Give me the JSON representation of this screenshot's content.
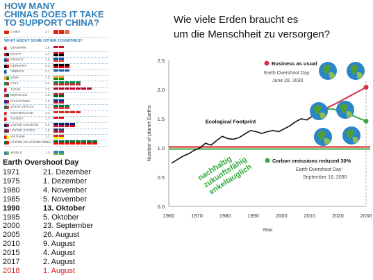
{
  "infographic": {
    "title_line1": "HOW MANY",
    "title_line2": "CHINAS DOES IT TAKE",
    "title_line3": "TO SUPPORT CHINA?",
    "china": {
      "name": "CHINA",
      "value": "2.7"
    },
    "subtitle": "WHAT ABOUT SOME OTHER COUNTRIES?",
    "rows": [
      {
        "name": "DENMARK",
        "value": "1.8",
        "chips": 2,
        "colors": [
          "#c8102e",
          "#ffffff"
        ]
      },
      {
        "name": "EGYPT",
        "value": "1.7",
        "chips": 2,
        "colors": [
          "#ce1126",
          "#000000"
        ]
      },
      {
        "name": "FRANCE",
        "value": "1.6",
        "chips": 2,
        "colors": [
          "#0055a4",
          "#ef4135"
        ]
      },
      {
        "name": "GERMANY",
        "value": "2.5",
        "chips": 3,
        "colors": [
          "#000000",
          "#dd0000",
          "#ffce00"
        ]
      },
      {
        "name": "GREECE",
        "value": "3.1",
        "chips": 3,
        "colors": [
          "#0d5eaf",
          "#ffffff"
        ]
      },
      {
        "name": "INDIA",
        "value": "1.9",
        "chips": 2,
        "colors": [
          "#ff9933",
          "#138808"
        ]
      },
      {
        "name": "ITALY",
        "value": "4.4",
        "chips": 5,
        "colors": [
          "#009246",
          "#ce2b37"
        ]
      },
      {
        "name": "JAPAN",
        "value": "7.0",
        "chips": 7,
        "colors": [
          "#bc002d",
          "#ffffff"
        ]
      },
      {
        "name": "MOROCCO",
        "value": "1.8",
        "chips": 2,
        "colors": [
          "#c1272d",
          "#006233"
        ]
      },
      {
        "name": "PHILIPPINES",
        "value": "1.5",
        "chips": 2,
        "colors": [
          "#0038a8",
          "#ce1126"
        ]
      },
      {
        "name": "SOUTH AFRICA",
        "value": "2.2",
        "chips": 3,
        "colors": [
          "#007749",
          "#de3831"
        ]
      },
      {
        "name": "SWITZERLAND",
        "value": "4.3",
        "chips": 5,
        "colors": [
          "#d52b1e",
          "#ffffff"
        ]
      },
      {
        "name": "TURKEY",
        "value": "1.7",
        "chips": 2,
        "colors": [
          "#e30a17",
          "#ffffff"
        ]
      },
      {
        "name": "UNITED KINGDOM",
        "value": "3.9",
        "chips": 4,
        "colors": [
          "#012169",
          "#c8102e"
        ]
      },
      {
        "name": "UNITED STATES",
        "value": "1.9",
        "chips": 2,
        "colors": [
          "#3c3b6e",
          "#b22234"
        ]
      },
      {
        "name": "VIETNAM",
        "value": "1.7",
        "chips": 2,
        "colors": [
          "#da251d",
          "#ffff00"
        ]
      },
      {
        "name": "UNITED ARAB EMIRATES",
        "value": "12.3",
        "chips": 8,
        "colors": [
          "#00732f",
          "#ff0000"
        ]
      },
      {
        "name": "WORLD",
        "value": "1.5",
        "chips": 2,
        "colors": [
          "#2f7fb8",
          "#6ab04c"
        ]
      }
    ]
  },
  "overshoot": {
    "title": "Earth Overshoot Day",
    "rows": [
      {
        "year": "1971",
        "date": "21. Dezember",
        "style": ""
      },
      {
        "year": "1975",
        "date": "1. Dezember",
        "style": ""
      },
      {
        "year": "1980",
        "date": "4. November",
        "style": ""
      },
      {
        "year": "1985",
        "date": "5. November",
        "style": ""
      },
      {
        "year": "1990",
        "date": "13. Oktober",
        "style": "bold"
      },
      {
        "year": "1995",
        "date": "5. Oktober",
        "style": ""
      },
      {
        "year": "2000",
        "date": "23. September",
        "style": ""
      },
      {
        "year": "2005",
        "date": "26. August",
        "style": ""
      },
      {
        "year": "2010",
        "date": "9. August",
        "style": ""
      },
      {
        "year": "2015",
        "date": "4. August",
        "style": ""
      },
      {
        "year": "2017",
        "date": "2. August",
        "style": ""
      },
      {
        "year": "2018",
        "date": "1. August",
        "style": "red"
      }
    ]
  },
  "heading": {
    "line1": "Wie viele Erden braucht es",
    "line2": "um die Menschheit zu versorgen?"
  },
  "chart_data": {
    "type": "line",
    "xlabel": "Year",
    "ylabel": "Number of planet Earths",
    "xlim": [
      1960,
      2030
    ],
    "ylim": [
      0,
      2.5
    ],
    "xticks": [
      "1960",
      "1970",
      "1980",
      "1990",
      "2000",
      "2010",
      "2020",
      "2030"
    ],
    "yticks": [
      "0.0",
      "0.5",
      "1.0",
      "1.5",
      "2.0",
      "2.5"
    ],
    "footprint_label": "Ecological Footprint",
    "series": [
      {
        "name": "Ecological Footprint",
        "color": "#111111",
        "x": [
          1961,
          1963,
          1965,
          1967,
          1969,
          1971,
          1973,
          1975,
          1977,
          1979,
          1981,
          1983,
          1985,
          1987,
          1989,
          1991,
          1993,
          1995,
          1997,
          1999,
          2001,
          2003,
          2005,
          2007,
          2009,
          2011,
          2013,
          2015
        ],
        "y": [
          0.74,
          0.8,
          0.86,
          0.9,
          0.96,
          1.0,
          1.08,
          1.05,
          1.13,
          1.2,
          1.16,
          1.15,
          1.18,
          1.24,
          1.3,
          1.28,
          1.25,
          1.28,
          1.3,
          1.28,
          1.33,
          1.38,
          1.45,
          1.5,
          1.48,
          1.55,
          1.6,
          1.66
        ]
      },
      {
        "name": "Business as usual",
        "color": "#d8314c",
        "x": [
          2015,
          2020,
          2025,
          2030
        ],
        "y": [
          1.66,
          1.78,
          1.91,
          2.04
        ]
      },
      {
        "name": "Carbon emissions reduced 30%",
        "color": "#3aa845",
        "x": [
          2015,
          2018,
          2022,
          2026,
          2030
        ],
        "y": [
          1.66,
          1.67,
          1.62,
          1.54,
          1.46
        ]
      }
    ],
    "biocapacity_line": {
      "y": 1.0,
      "colors": [
        "#d61a1a",
        "#3aa845"
      ]
    },
    "annotations": {
      "bau_title": "Business as usual",
      "bau_line1": "Earth Overshoot Day:",
      "bau_line2": "June 28, 2030",
      "cer_title": "Carbon emissions reduced 30%",
      "cer_line1": "Earth Overshoot Day:",
      "cer_line2": "September 16, 2030"
    },
    "green_text": [
      "nachhaltig",
      "zukunftsfähig",
      "enkeltauglich"
    ]
  }
}
